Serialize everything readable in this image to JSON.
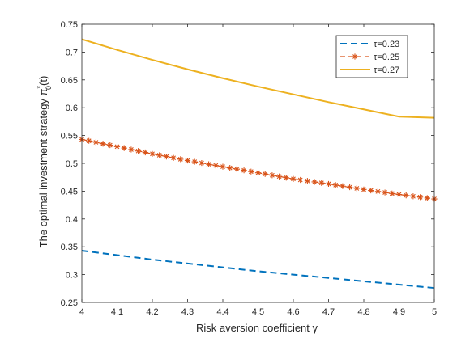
{
  "chart_data": {
    "type": "line",
    "xlabel": "Risk aversion coefficient γ",
    "ylabel": "The optimal investment strategy π",
    "ylabel_super": "*",
    "ylabel_sub": "0",
    "ylabel_tail": "(t)",
    "xlim": [
      4,
      5
    ],
    "ylim": [
      0.25,
      0.75
    ],
    "xticks": [
      4,
      4.1,
      4.2,
      4.3,
      4.4,
      4.5,
      4.6,
      4.7,
      4.8,
      4.9,
      5
    ],
    "xtick_labels": [
      "4",
      "4.1",
      "4.2",
      "4.3",
      "4.4",
      "4.5",
      "4.6",
      "4.7",
      "4.8",
      "4.9",
      "5"
    ],
    "yticks": [
      0.25,
      0.3,
      0.35,
      0.4,
      0.45,
      0.5,
      0.55,
      0.6,
      0.65,
      0.7,
      0.75
    ],
    "ytick_labels": [
      "0.25",
      "0.3",
      "0.35",
      "0.4",
      "0.45",
      "0.5",
      "0.55",
      "0.6",
      "0.65",
      "0.7",
      "0.75"
    ],
    "grid": false,
    "legend_position": "top-right",
    "x": [
      4,
      4.1,
      4.2,
      4.3,
      4.4,
      4.5,
      4.6,
      4.7,
      4.8,
      4.9,
      5
    ],
    "series": [
      {
        "name": "τ=0.23",
        "color": "#0072BD",
        "style": "dashed",
        "values": [
          0.343,
          0.335,
          0.327,
          0.32,
          0.313,
          0.306,
          0.3,
          0.294,
          0.288,
          0.282,
          0.276
        ]
      },
      {
        "name": "τ=0.25",
        "color": "#D95319",
        "style": "dashed-asterisk",
        "values": [
          0.543,
          0.53,
          0.517,
          0.505,
          0.494,
          0.483,
          0.472,
          0.463,
          0.453,
          0.444,
          0.436
        ]
      },
      {
        "name": "τ=0.27",
        "color": "#EDB120",
        "style": "solid",
        "values": [
          0.723,
          0.704,
          0.686,
          0.669,
          0.653,
          0.638,
          0.624,
          0.61,
          0.597,
          0.584,
          0.582
        ]
      }
    ]
  }
}
